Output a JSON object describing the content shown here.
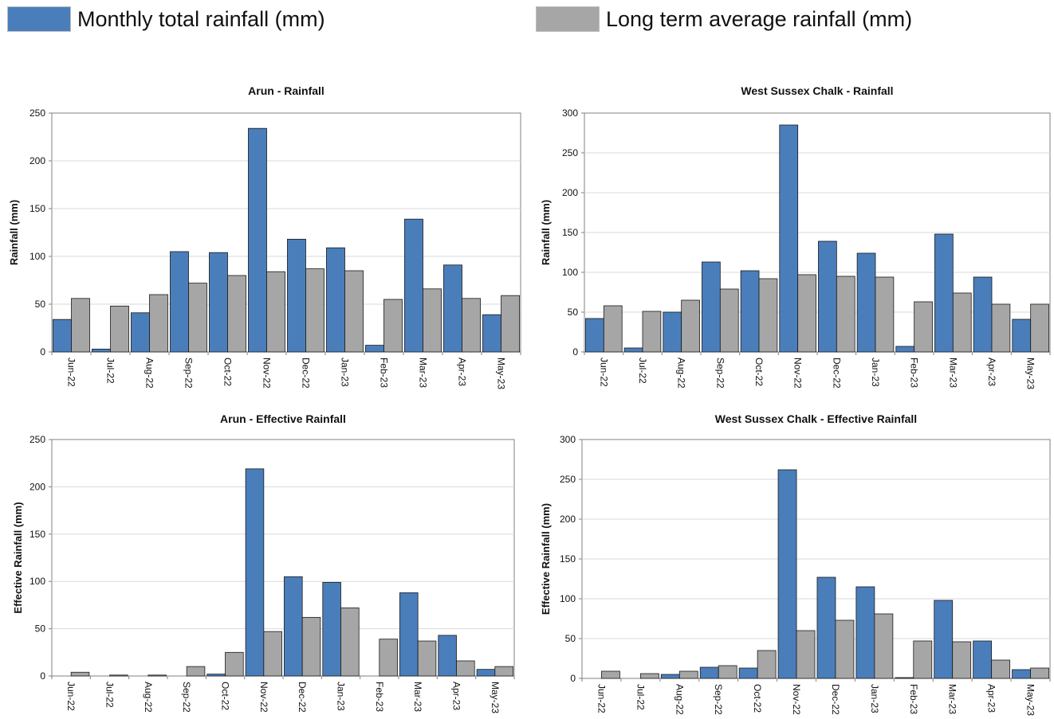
{
  "legend": {
    "monthly_label": "Monthly total rainfall (mm)",
    "average_label": "Long term average rainfall (mm)"
  },
  "colors": {
    "monthly": "#4a7ebb",
    "average": "#a6a6a6",
    "grid": "#d9d9d9",
    "axis": "#808080"
  },
  "chart_data": [
    {
      "type": "bar",
      "title": "Arun - Rainfall",
      "xlabel": "",
      "ylabel": "Rainfall (mm)",
      "ylim": [
        0,
        250
      ],
      "yticks": [
        "0",
        "50",
        "100",
        "150",
        "200",
        "250"
      ],
      "grid": true,
      "categories": [
        "Jun-22",
        "Jul-22",
        "Aug-22",
        "Sep-22",
        "Oct-22",
        "Nov-22",
        "Dec-22",
        "Jan-23",
        "Feb-23",
        "Mar-23",
        "Apr-23",
        "May-23"
      ],
      "series": [
        {
          "values": [
            34,
            3,
            41,
            105,
            104,
            234,
            118,
            109,
            7,
            139,
            91,
            39
          ]
        },
        {
          "values": [
            56,
            48,
            60,
            72,
            80,
            84,
            87,
            85,
            55,
            66,
            56,
            59
          ]
        }
      ]
    },
    {
      "type": "bar",
      "title": "West Sussex Chalk - Rainfall",
      "xlabel": "",
      "ylabel": "Rainfall (mm)",
      "ylim": [
        0,
        300
      ],
      "yticks": [
        "0",
        "50",
        "100",
        "150",
        "200",
        "250",
        "300"
      ],
      "grid": true,
      "categories": [
        "Jun-22",
        "Jul-22",
        "Aug-22",
        "Sep-22",
        "Oct-22",
        "Nov-22",
        "Dec-22",
        "Jan-23",
        "Feb-23",
        "Mar-23",
        "Apr-23",
        "May-23"
      ],
      "series": [
        {
          "values": [
            42,
            5,
            50,
            113,
            102,
            285,
            139,
            124,
            7,
            148,
            94,
            41
          ]
        },
        {
          "values": [
            58,
            51,
            65,
            79,
            92,
            97,
            95,
            94,
            63,
            74,
            60,
            60
          ]
        }
      ]
    },
    {
      "type": "bar",
      "title": "Arun - Effective Rainfall",
      "xlabel": "",
      "ylabel": "Effective Rainfall (mm)",
      "ylim": [
        0,
        250
      ],
      "yticks": [
        "0",
        "50",
        "100",
        "150",
        "200",
        "250"
      ],
      "grid": true,
      "categories": [
        "Jun-22",
        "Jul-22",
        "Aug-22",
        "Sep-22",
        "Oct-22",
        "Nov-22",
        "Dec-22",
        "Jan-23",
        "Feb-23",
        "Mar-23",
        "Apr-23",
        "May-23"
      ],
      "series": [
        {
          "values": [
            0,
            0,
            0,
            0,
            2,
            219,
            105,
            99,
            0,
            88,
            43,
            7
          ]
        },
        {
          "values": [
            4,
            1,
            1,
            10,
            25,
            47,
            62,
            72,
            39,
            37,
            16,
            10
          ]
        }
      ]
    },
    {
      "type": "bar",
      "title": "West Sussex Chalk - Effective Rainfall",
      "xlabel": "",
      "ylabel": "Effective Rainfall (mm)",
      "ylim": [
        0,
        300
      ],
      "yticks": [
        "0",
        "50",
        "100",
        "150",
        "200",
        "250",
        "300"
      ],
      "grid": true,
      "categories": [
        "Jun-22",
        "Jul-22",
        "Aug-22",
        "Sep-22",
        "Oct-22",
        "Nov-22",
        "Dec-22",
        "Jan-23",
        "Feb-23",
        "Mar-23",
        "Apr-23",
        "May-23"
      ],
      "series": [
        {
          "values": [
            0,
            0,
            5,
            14,
            13,
            262,
            127,
            115,
            1,
            98,
            47,
            11
          ]
        },
        {
          "values": [
            9,
            6,
            9,
            16,
            35,
            60,
            73,
            81,
            47,
            46,
            23,
            13
          ]
        }
      ]
    }
  ]
}
